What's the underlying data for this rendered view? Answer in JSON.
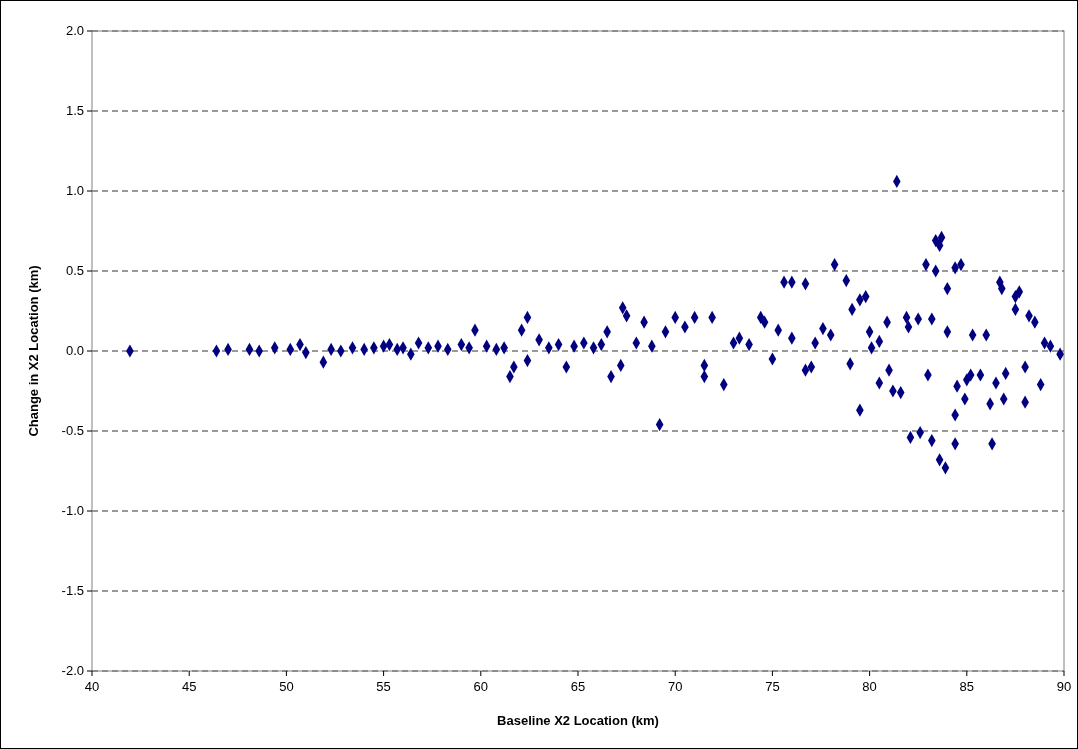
{
  "chart_data": {
    "type": "scatter",
    "xlabel": "Baseline X2 Location (km)",
    "ylabel": "Change in X2 Location (km)",
    "xlim": [
      40,
      90
    ],
    "xticks": [
      40,
      45,
      50,
      55,
      60,
      65,
      70,
      75,
      80,
      85,
      90
    ],
    "ylim": [
      -2,
      2
    ],
    "yticks": [
      {
        "value": -2,
        "label": "-2.0"
      },
      {
        "value": -1.5,
        "label": "-1.5"
      },
      {
        "value": -1,
        "label": "-1.0"
      },
      {
        "value": -0.5,
        "label": "-0.5"
      },
      {
        "value": 0,
        "label": "0.0"
      },
      {
        "value": 0.5,
        "label": "0.5"
      },
      {
        "value": 1,
        "label": "1.0"
      },
      {
        "value": 1.5,
        "label": "1.5"
      },
      {
        "value": 2,
        "label": "2.0"
      }
    ],
    "grid": "y",
    "marker": "diamond",
    "series": [
      {
        "color": "#000080",
        "x": [
          41.95,
          46.4,
          47.0,
          48.1,
          48.6,
          49.4,
          50.2,
          50.7,
          51.0,
          51.9,
          52.3,
          52.8,
          53.4,
          54.0,
          54.5,
          55.0,
          55.3,
          55.7,
          56.0,
          56.4,
          56.8,
          57.3,
          57.8,
          58.3,
          59.0,
          59.4,
          59.7,
          60.3,
          60.8,
          61.2,
          61.5,
          61.7,
          62.1,
          62.4,
          62.4,
          63.0,
          63.5,
          64.0,
          64.4,
          64.8,
          65.3,
          65.8,
          66.2,
          66.5,
          66.7,
          67.2,
          67.3,
          67.5,
          68.0,
          68.4,
          68.8,
          69.2,
          69.5,
          70.0,
          70.5,
          71.0,
          71.5,
          71.5,
          71.9,
          72.5,
          73.0,
          73.3,
          73.8,
          74.4,
          74.6,
          75.3,
          75.6,
          76.0,
          76.7,
          76.7,
          77.2,
          77.6,
          78.2,
          78.8,
          79.1,
          79.5,
          79.5,
          79.8,
          80.1,
          80.5,
          80.9,
          81.4,
          81.6,
          81.9,
          82.1,
          82.6,
          82.9,
          83.2,
          83.4,
          83.6,
          83.7,
          83.4,
          83.6,
          83.9,
          84.0,
          84.4,
          84.4,
          84.7,
          84.4,
          84.9,
          85.3,
          85.7,
          86.3,
          86.2,
          86.7,
          86.8,
          86.9,
          87.5,
          87.7,
          87.5,
          88.0,
          88.2,
          88.8,
          89.3,
          89.8,
          75.0,
          76.0,
          77.0,
          78.0,
          79.0,
          80.0,
          81.0,
          82.0,
          83.0,
          84.0,
          85.0,
          86.0,
          87.0,
          88.0,
          89.0,
          80.5,
          82.5,
          84.5,
          86.5,
          88.5,
          81.2,
          83.2,
          85.2
        ],
        "values": [
          0,
          0,
          0.01,
          0.01,
          0,
          0.02,
          0.01,
          0.04,
          -0.01,
          -0.07,
          0.01,
          0,
          0.02,
          0.01,
          0.02,
          0.03,
          0.04,
          0.01,
          0.02,
          -0.02,
          0.05,
          0.02,
          0.03,
          0.01,
          0.04,
          0.02,
          0.13,
          0.03,
          0.01,
          0.02,
          -0.16,
          -0.1,
          0.13,
          0.21,
          -0.06,
          0.07,
          0.02,
          0.04,
          -0.1,
          0.03,
          0.05,
          0.02,
          0.04,
          0.12,
          -0.16,
          -0.09,
          0.27,
          0.22,
          0.05,
          0.18,
          0.03,
          -0.46,
          0.12,
          0.21,
          0.15,
          0.21,
          -0.16,
          -0.09,
          0.21,
          -0.21,
          0.05,
          0.08,
          0.04,
          0.21,
          0.18,
          0.13,
          0.43,
          0.43,
          0.42,
          -0.12,
          0.05,
          0.14,
          0.54,
          0.44,
          0.26,
          -0.37,
          0.32,
          0.34,
          0.02,
          0.06,
          0.18,
          1.06,
          -0.26,
          0.21,
          -0.54,
          -0.51,
          0.54,
          -0.56,
          0.69,
          0.66,
          0.71,
          0.5,
          -0.68,
          -0.73,
          0.39,
          -0.4,
          0.52,
          0.54,
          -0.58,
          -0.3,
          0.1,
          -0.15,
          -0.58,
          -0.33,
          0.43,
          0.39,
          -0.3,
          0.26,
          0.37,
          0.34,
          -0.32,
          0.22,
          -0.21,
          0.03,
          -0.02,
          -0.05,
          0.08,
          -0.1,
          0.1,
          -0.08,
          0.12,
          -0.12,
          0.15,
          -0.15,
          0.12,
          -0.18,
          0.1,
          -0.14,
          -0.1,
          0.05,
          -0.2,
          0.2,
          -0.22,
          -0.2,
          0.18,
          -0.25,
          0.2,
          -0.15
        ]
      }
    ]
  }
}
